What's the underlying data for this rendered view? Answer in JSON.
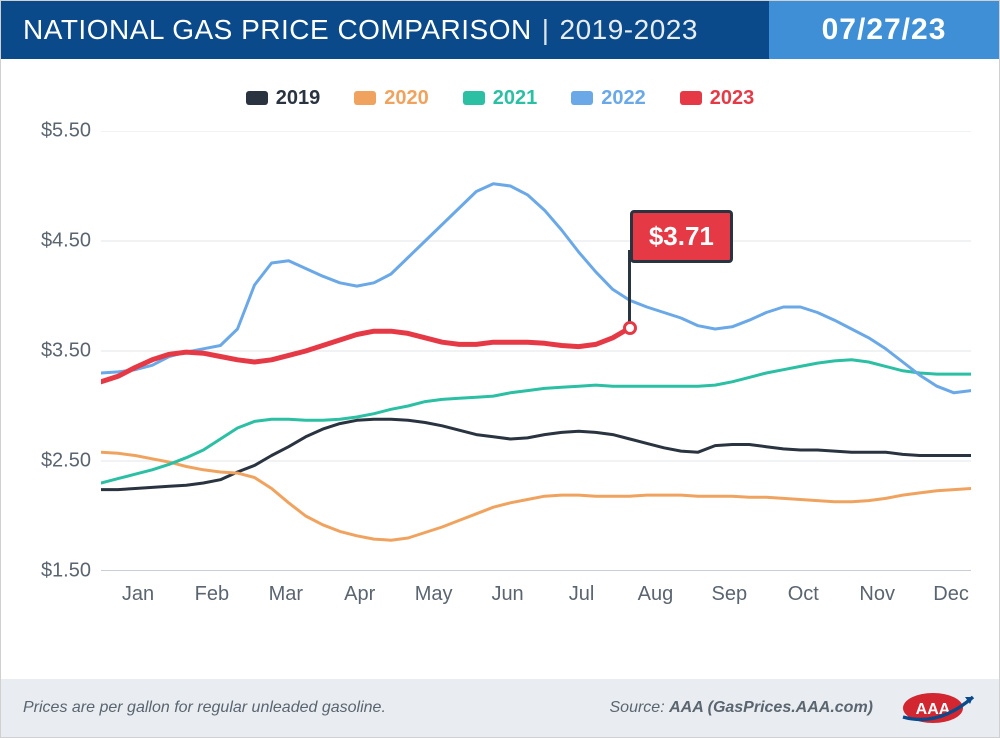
{
  "header": {
    "title_main": "NATIONAL GAS PRICE COMPARISON",
    "title_sep": "|",
    "title_range": "2019-2023",
    "date": "07/27/23",
    "bg_left": "#0a4a8a",
    "bg_right": "#3f8fd6",
    "text_color": "#ffffff"
  },
  "legend": {
    "items": [
      {
        "label": "2019",
        "color": "#2a3340"
      },
      {
        "label": "2020",
        "color": "#f0a35e"
      },
      {
        "label": "2021",
        "color": "#2bbfa3"
      },
      {
        "label": "2022",
        "color": "#6aa8e8"
      },
      {
        "label": "2023",
        "color": "#e63946"
      }
    ],
    "label_fontsize": 20
  },
  "chart": {
    "type": "line",
    "background_color": "#ffffff",
    "grid_color": "#e2e6ea",
    "axis_baseline_color": "#b5bdc5",
    "ylim": [
      1.5,
      5.5
    ],
    "yticks": [
      1.5,
      2.5,
      3.5,
      4.5,
      5.5
    ],
    "ytick_labels": [
      "$1.50",
      "$2.50",
      "$3.50",
      "$4.50",
      "$5.50"
    ],
    "tick_fontsize": 20,
    "tick_color": "#5a6570",
    "x_categories": [
      "Jan",
      "Feb",
      "Mar",
      "Apr",
      "May",
      "Jun",
      "Jul",
      "Aug",
      "Sep",
      "Oct",
      "Nov",
      "Dec"
    ],
    "x_resolution_weeks": 52,
    "line_width_default": 3,
    "series": [
      {
        "name": "2019",
        "color": "#2a3340",
        "width": 3,
        "values": [
          2.24,
          2.24,
          2.25,
          2.26,
          2.27,
          2.28,
          2.3,
          2.33,
          2.4,
          2.46,
          2.55,
          2.63,
          2.72,
          2.79,
          2.84,
          2.87,
          2.88,
          2.88,
          2.87,
          2.85,
          2.82,
          2.78,
          2.74,
          2.72,
          2.7,
          2.71,
          2.74,
          2.76,
          2.77,
          2.76,
          2.74,
          2.7,
          2.66,
          2.62,
          2.59,
          2.58,
          2.64,
          2.65,
          2.65,
          2.63,
          2.61,
          2.6,
          2.6,
          2.59,
          2.58,
          2.58,
          2.58,
          2.56,
          2.55,
          2.55,
          2.55,
          2.55
        ]
      },
      {
        "name": "2020",
        "color": "#f0a35e",
        "width": 3,
        "values": [
          2.58,
          2.57,
          2.55,
          2.52,
          2.49,
          2.45,
          2.42,
          2.4,
          2.39,
          2.35,
          2.25,
          2.12,
          2.0,
          1.92,
          1.86,
          1.82,
          1.79,
          1.78,
          1.8,
          1.85,
          1.9,
          1.96,
          2.02,
          2.08,
          2.12,
          2.15,
          2.18,
          2.19,
          2.19,
          2.18,
          2.18,
          2.18,
          2.19,
          2.19,
          2.19,
          2.18,
          2.18,
          2.18,
          2.17,
          2.17,
          2.16,
          2.15,
          2.14,
          2.13,
          2.13,
          2.14,
          2.16,
          2.19,
          2.21,
          2.23,
          2.24,
          2.25
        ]
      },
      {
        "name": "2021",
        "color": "#2bbfa3",
        "width": 3,
        "values": [
          2.3,
          2.34,
          2.38,
          2.42,
          2.47,
          2.53,
          2.6,
          2.7,
          2.8,
          2.86,
          2.88,
          2.88,
          2.87,
          2.87,
          2.88,
          2.9,
          2.93,
          2.97,
          3.0,
          3.04,
          3.06,
          3.07,
          3.08,
          3.09,
          3.12,
          3.14,
          3.16,
          3.17,
          3.18,
          3.19,
          3.18,
          3.18,
          3.18,
          3.18,
          3.18,
          3.18,
          3.19,
          3.22,
          3.26,
          3.3,
          3.33,
          3.36,
          3.39,
          3.41,
          3.42,
          3.4,
          3.36,
          3.32,
          3.3,
          3.29,
          3.29,
          3.29
        ]
      },
      {
        "name": "2022",
        "color": "#6aa8e8",
        "width": 3,
        "values": [
          3.3,
          3.31,
          3.33,
          3.37,
          3.45,
          3.49,
          3.52,
          3.55,
          3.7,
          4.1,
          4.3,
          4.32,
          4.25,
          4.18,
          4.12,
          4.09,
          4.12,
          4.2,
          4.35,
          4.5,
          4.65,
          4.8,
          4.95,
          5.02,
          5.0,
          4.92,
          4.78,
          4.6,
          4.4,
          4.22,
          4.06,
          3.96,
          3.9,
          3.85,
          3.8,
          3.73,
          3.7,
          3.72,
          3.78,
          3.85,
          3.9,
          3.9,
          3.85,
          3.78,
          3.7,
          3.62,
          3.52,
          3.4,
          3.28,
          3.18,
          3.12,
          3.14
        ]
      },
      {
        "name": "2023",
        "color": "#e63946",
        "width": 5,
        "values": [
          3.22,
          3.27,
          3.35,
          3.42,
          3.47,
          3.49,
          3.48,
          3.45,
          3.42,
          3.4,
          3.42,
          3.46,
          3.5,
          3.55,
          3.6,
          3.65,
          3.68,
          3.68,
          3.66,
          3.62,
          3.58,
          3.56,
          3.56,
          3.58,
          3.58,
          3.58,
          3.57,
          3.55,
          3.54,
          3.56,
          3.62,
          3.71
        ]
      }
    ],
    "callout": {
      "series": "2023",
      "label": "$3.71",
      "x_week": 31,
      "y_value": 3.71,
      "flag_bg": "#e63946",
      "flag_border": "#2a3340",
      "flag_text_color": "#ffffff",
      "flag_fontsize": 26
    }
  },
  "footer": {
    "note": "Prices are per gallon for regular unleaded gasoline.",
    "source_prefix": "Source: ",
    "source_bold": "AAA (GasPrices.AAA.com)",
    "bg": "#e9edf1",
    "text_color": "#5a6570",
    "logo": {
      "name": "aaa-logo",
      "oval_color": "#d22630",
      "text": "AAA",
      "text_color": "#ffffff",
      "swoosh_color": "#0a4a8a"
    }
  }
}
